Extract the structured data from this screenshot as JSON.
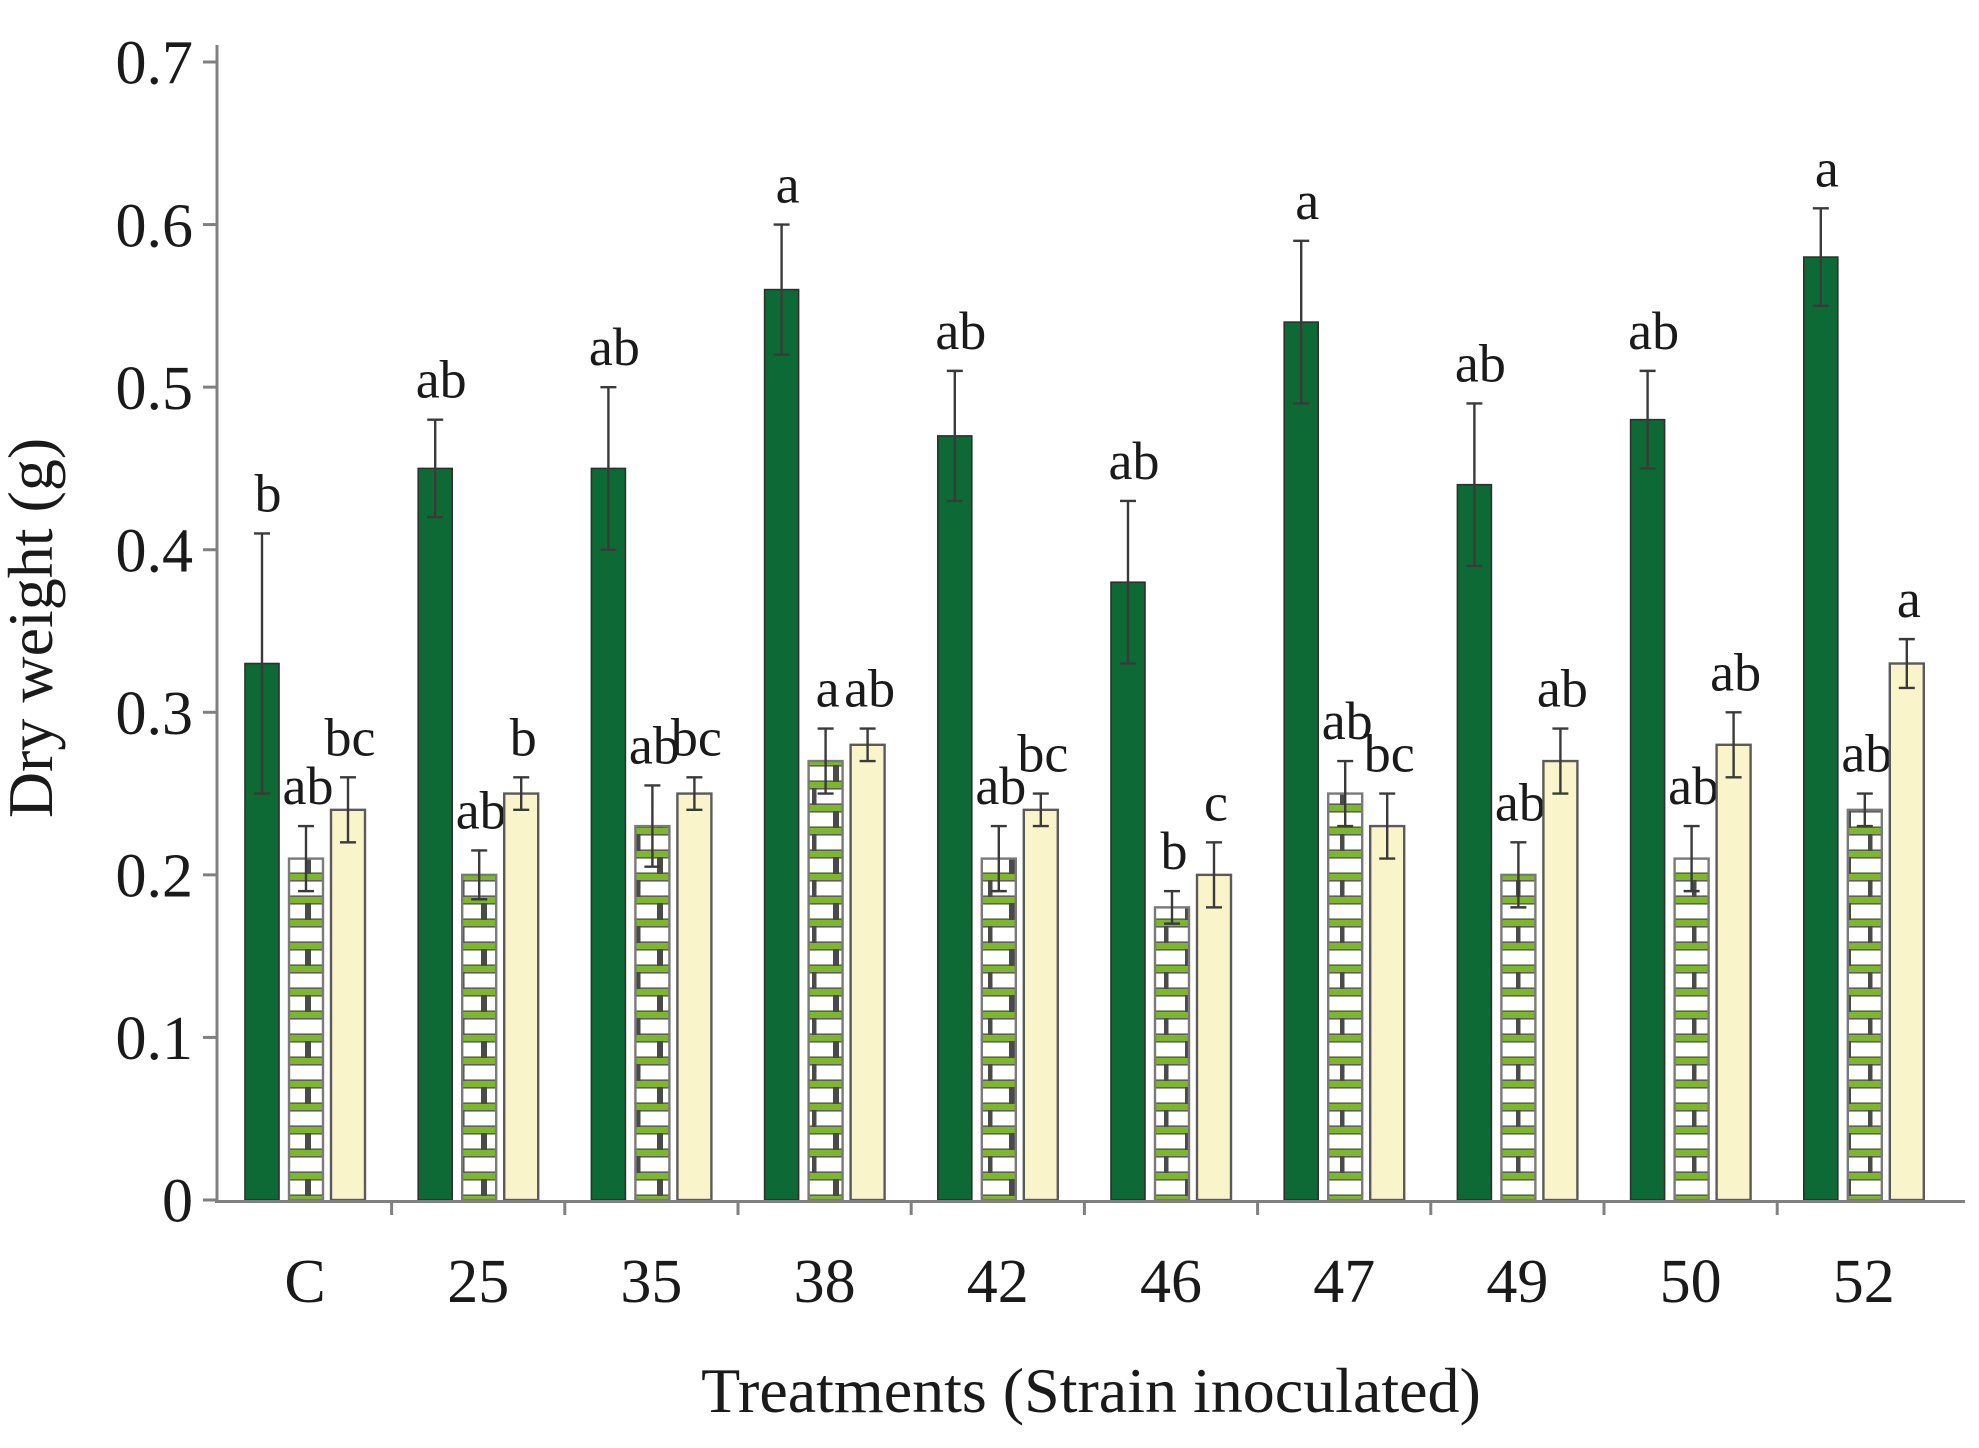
{
  "figure": {
    "background": "#ffffff"
  },
  "chart_data": {
    "type": "bar",
    "title": "",
    "xlabel": "Treatments (Strain inoculated)",
    "ylabel": "Dry weight (g)",
    "ylim": [
      0,
      0.7
    ],
    "ytick_values": [
      0,
      0.1,
      0.2,
      0.3,
      0.4,
      0.5,
      0.6,
      0.7
    ],
    "ytick_labels": [
      "0",
      "0.1",
      "0.2",
      "0.3",
      "0.4",
      "0.5",
      "0.6",
      "0.7"
    ],
    "categories": [
      "C",
      "25",
      "35",
      "38",
      "42",
      "46",
      "47",
      "49",
      "50",
      "52"
    ],
    "grid": false,
    "legend_position": "none",
    "series": [
      {
        "name": "dark-green-solid-bar",
        "fill_style": "solid-dark-green",
        "fill": "#0e6a35",
        "stroke": "#2f2f2f",
        "values": [
          0.33,
          0.45,
          0.45,
          0.56,
          0.47,
          0.38,
          0.54,
          0.44,
          0.48,
          0.58
        ],
        "errors": [
          0.08,
          0.03,
          0.05,
          0.04,
          0.04,
          0.05,
          0.05,
          0.05,
          0.03,
          0.03
        ],
        "letters": [
          "b",
          "ab",
          "ab",
          "a",
          "ab",
          "ab",
          "a",
          "ab",
          "ab",
          "a"
        ]
      },
      {
        "name": "green-brick-pattern-bar",
        "fill_style": "white-green-brick-pattern",
        "fill": "url(#brickPattern)",
        "stroke": "#7a7a7a",
        "values": [
          0.21,
          0.2,
          0.23,
          0.27,
          0.21,
          0.18,
          0.25,
          0.2,
          0.21,
          0.24
        ],
        "errors": [
          0.02,
          0.015,
          0.025,
          0.02,
          0.02,
          0.01,
          0.02,
          0.02,
          0.02,
          0.01
        ],
        "letters": [
          "ab",
          "ab",
          "ab",
          "a",
          "ab",
          "b",
          "ab",
          "ab",
          "ab",
          "ab"
        ]
      },
      {
        "name": "pale-yellow-bar",
        "fill_style": "solid-pale-cream",
        "fill": "#faf4cb",
        "stroke": "#5a5a5a",
        "values": [
          0.24,
          0.25,
          0.25,
          0.28,
          0.24,
          0.2,
          0.23,
          0.27,
          0.28,
          0.33
        ],
        "errors": [
          0.02,
          0.01,
          0.01,
          0.01,
          0.01,
          0.02,
          0.02,
          0.02,
          0.02,
          0.015
        ],
        "letters": [
          "bc",
          "b",
          "bc",
          "ab",
          "bc",
          "c",
          "bc",
          "ab",
          "ab",
          "a"
        ]
      }
    ],
    "colors": {
      "axis": "#808080",
      "error_bar": "#3a3a3a",
      "text": "#1a1a1a",
      "brick_face": "#ffffff",
      "brick_mortar_green": "#7cb82a",
      "brick_joint_dark": "#4a4a4a"
    }
  }
}
